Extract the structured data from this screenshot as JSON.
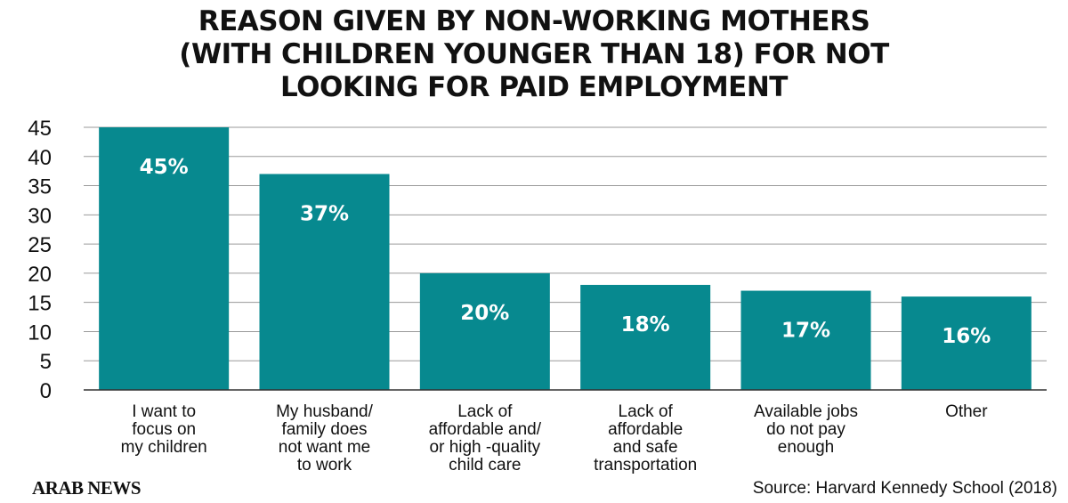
{
  "title": {
    "line1": "REASON GIVEN BY NON-WORKING MOTHERS",
    "line2": "(WITH CHILDREN YOUNGER THAN 18) FOR NOT",
    "line3": "LOOKING FOR PAID EMPLOYMENT"
  },
  "colors": {
    "bar": "#07898F",
    "bar_label": "#ffffff",
    "grid": "#9a9a9a"
  },
  "chart_data": {
    "type": "bar",
    "categories": [
      [
        "I want to",
        "focus on",
        "my children"
      ],
      [
        "My husband/",
        "family does",
        "not want me",
        "to work"
      ],
      [
        "Lack of",
        "affordable and/",
        "or high -quality",
        "child care"
      ],
      [
        "Lack of",
        "affordable",
        "and safe",
        "transportation"
      ],
      [
        "Available jobs",
        "do not pay",
        "enough"
      ],
      [
        "Other"
      ]
    ],
    "values": [
      45,
      37,
      20,
      18,
      17,
      16
    ],
    "data_labels": [
      "45%",
      "37%",
      "20%",
      "18%",
      "17%",
      "16%"
    ],
    "ylim": [
      0,
      45
    ],
    "yticks": [
      0,
      5,
      10,
      15,
      20,
      25,
      30,
      35,
      40,
      45
    ],
    "grid": true
  },
  "footer": {
    "logo": "ARAB NEWS",
    "source": "Source: Harvard Kennedy School (2018)"
  }
}
